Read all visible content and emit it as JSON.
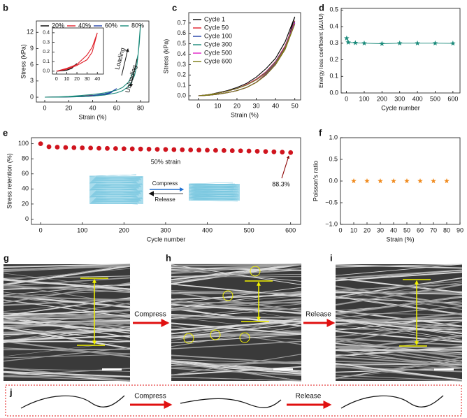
{
  "chart_data": [
    {
      "type": "line",
      "panel": "b",
      "xlabel": "Strain (%)",
      "ylabel": "Stress (kPa)",
      "xlim": [
        -7,
        87
      ],
      "ylim": [
        -0.9,
        14.1
      ],
      "xticks": [
        0,
        20,
        40,
        60,
        80
      ],
      "yticks": [
        0,
        3,
        6,
        9,
        12
      ],
      "legend": "top",
      "annotations": [
        "Loading",
        "Unloading"
      ],
      "series": [
        {
          "name": "20%",
          "color": "#000000",
          "x": [
            0,
            10,
            15,
            20,
            15,
            10,
            0
          ],
          "values": [
            0,
            0.02,
            0.04,
            0.08,
            0.03,
            0.01,
            0
          ]
        },
        {
          "name": "40%",
          "color": "#e0202a",
          "x": [
            0,
            10,
            20,
            30,
            35,
            40,
            35,
            30,
            20,
            10,
            0
          ],
          "values": [
            0,
            0.03,
            0.07,
            0.17,
            0.25,
            0.4,
            0.2,
            0.12,
            0.06,
            0.02,
            0
          ]
        },
        {
          "name": "60%",
          "color": "#1f3ea8",
          "x": [
            0,
            10,
            20,
            30,
            40,
            50,
            55,
            60,
            57,
            55,
            50,
            40,
            30,
            20,
            10,
            0
          ],
          "values": [
            0,
            0.03,
            0.08,
            0.15,
            0.3,
            0.6,
            0.9,
            1.6,
            1.1,
            0.8,
            0.45,
            0.2,
            0.1,
            0.04,
            0.01,
            0
          ]
        },
        {
          "name": "80%",
          "color": "#1a8a7a",
          "x": [
            0,
            10,
            20,
            30,
            40,
            50,
            60,
            65,
            70,
            75,
            78,
            80,
            79,
            77,
            75,
            72,
            70,
            65,
            60,
            50,
            40,
            30,
            20,
            10,
            0
          ],
          "values": [
            0,
            0.05,
            0.15,
            0.3,
            0.5,
            0.8,
            1.3,
            1.8,
            2.8,
            5,
            8,
            13.5,
            10,
            6,
            4,
            2.6,
            2,
            1.2,
            0.8,
            0.4,
            0.2,
            0.1,
            0.05,
            0.02,
            0
          ]
        }
      ]
    },
    {
      "type": "line",
      "xlim": [
        -4,
        46
      ],
      "ylim": [
        -0.03,
        0.45
      ],
      "xticks": [
        0,
        10,
        20,
        30,
        40
      ],
      "yticks": [
        {
          "value": 0,
          "label": "0.0"
        },
        0.1,
        0.2,
        0.3,
        0.4
      ],
      "series": [
        {
          "color": "#000000",
          "x": [
            0,
            10,
            15,
            20,
            15,
            10,
            0
          ],
          "values": [
            0,
            0.02,
            0.04,
            0.08,
            0.03,
            0.01,
            0
          ]
        },
        {
          "color": "#e0202a",
          "x": [
            0,
            10,
            20,
            30,
            35,
            40,
            35,
            30,
            20,
            10,
            0
          ],
          "values": [
            0,
            0.03,
            0.07,
            0.17,
            0.25,
            0.4,
            0.2,
            0.12,
            0.06,
            0.02,
            0
          ]
        }
      ]
    },
    {
      "type": "line",
      "panel": "c",
      "xlabel": "Strain (%)",
      "ylabel": "Stress (kPa)",
      "xlim": [
        -5,
        53
      ],
      "ylim": [
        -0.04,
        0.8
      ],
      "xticks": [
        0,
        10,
        20,
        30,
        40,
        50
      ],
      "yticks": [
        {
          "value": 0,
          "label": "0.0"
        },
        0.1,
        0.2,
        0.3,
        0.4,
        0.5,
        0.6,
        0.7
      ],
      "legend": "upper left",
      "x": [
        0,
        5,
        10,
        15,
        20,
        25,
        30,
        35,
        40,
        45,
        50,
        45,
        40,
        35,
        30,
        25,
        20,
        15,
        10,
        5,
        0
      ],
      "series": [
        {
          "name": "Cycle 1",
          "color": "#000000",
          "values": [
            0,
            0.01,
            0.03,
            0.05,
            0.08,
            0.12,
            0.18,
            0.26,
            0.36,
            0.52,
            0.76,
            0.45,
            0.3,
            0.2,
            0.13,
            0.08,
            0.05,
            0.03,
            0.015,
            0.005,
            0
          ]
        },
        {
          "name": "Cycle 50",
          "color": "#e0202a",
          "values": [
            0,
            0.01,
            0.025,
            0.045,
            0.07,
            0.11,
            0.16,
            0.23,
            0.33,
            0.48,
            0.72,
            0.46,
            0.31,
            0.21,
            0.13,
            0.08,
            0.05,
            0.03,
            0.015,
            0.005,
            0
          ]
        },
        {
          "name": "Cycle 100",
          "color": "#1f3ea8",
          "values": [
            0,
            0.01,
            0.025,
            0.045,
            0.07,
            0.105,
            0.155,
            0.225,
            0.325,
            0.47,
            0.71,
            0.455,
            0.305,
            0.205,
            0.13,
            0.08,
            0.05,
            0.03,
            0.015,
            0.005,
            0
          ]
        },
        {
          "name": "Cycle 300",
          "color": "#1a8a7a",
          "values": [
            0,
            0.01,
            0.025,
            0.045,
            0.07,
            0.105,
            0.155,
            0.22,
            0.32,
            0.465,
            0.7,
            0.45,
            0.3,
            0.2,
            0.13,
            0.08,
            0.05,
            0.03,
            0.015,
            0.005,
            0
          ]
        },
        {
          "name": "Cycle 500",
          "color": "#e020c8",
          "values": [
            0,
            0.01,
            0.025,
            0.045,
            0.07,
            0.105,
            0.155,
            0.22,
            0.318,
            0.463,
            0.7,
            0.45,
            0.3,
            0.2,
            0.13,
            0.08,
            0.05,
            0.03,
            0.015,
            0.005,
            0
          ]
        },
        {
          "name": "Cycle 600",
          "color": "#7a7a10",
          "values": [
            0,
            0.01,
            0.025,
            0.045,
            0.07,
            0.104,
            0.153,
            0.218,
            0.315,
            0.46,
            0.69,
            0.445,
            0.298,
            0.198,
            0.128,
            0.08,
            0.05,
            0.03,
            0.015,
            0.005,
            0
          ]
        }
      ]
    },
    {
      "type": "line",
      "panel": "d",
      "xlabel": "Cycle number",
      "ylabel": "Energy loss coefficient (ΔU/U)",
      "xlim": [
        -30,
        640
      ],
      "ylim": [
        0,
        0.51
      ],
      "xticks": [
        0,
        100,
        200,
        300,
        400,
        500,
        600
      ],
      "yticks": [
        {
          "value": 0,
          "label": "0.0"
        },
        0.1,
        0.2,
        0.3,
        0.4,
        0.5
      ],
      "marker": "star",
      "color": "#1a8a7a",
      "x": [
        1,
        10,
        50,
        100,
        200,
        300,
        400,
        500,
        600
      ],
      "values": [
        0.33,
        0.305,
        0.302,
        0.3,
        0.297,
        0.3,
        0.3,
        0.3,
        0.299
      ]
    },
    {
      "type": "scatter",
      "panel": "e",
      "xlabel": "Cycle number",
      "ylabel": "Stress retention (%)",
      "xlim": [
        -22,
        624
      ],
      "ylim": [
        -7,
        108
      ],
      "xticks": [
        0,
        100,
        200,
        300,
        400,
        500,
        600
      ],
      "yticks": [
        0,
        20,
        40,
        60,
        80,
        100
      ],
      "marker": "circle",
      "color": "#d0141e",
      "annotations": [
        "50% strain",
        "88.3%",
        "Compress",
        "Release"
      ],
      "x": [
        0,
        20,
        40,
        60,
        80,
        100,
        120,
        140,
        160,
        180,
        200,
        220,
        240,
        260,
        280,
        300,
        320,
        340,
        360,
        380,
        400,
        420,
        440,
        460,
        480,
        500,
        520,
        540,
        560,
        580,
        600
      ],
      "values": [
        100,
        96,
        95.5,
        95,
        94.8,
        94.5,
        94.3,
        94,
        93.8,
        93.6,
        93.4,
        93.2,
        93,
        92.8,
        92.6,
        92.4,
        92.2,
        92,
        91.8,
        91.6,
        91.4,
        91.2,
        91,
        90.8,
        90.6,
        90.3,
        90,
        89.7,
        89.3,
        88.9,
        88.3
      ]
    },
    {
      "type": "scatter",
      "panel": "f",
      "xlabel": "Strain (%)",
      "ylabel": "Poisson's ratio",
      "xlim": [
        0,
        90
      ],
      "ylim": [
        -1,
        1
      ],
      "xticks": [
        0,
        10,
        20,
        30,
        40,
        50,
        60,
        70,
        80,
        90
      ],
      "yticks": [
        {
          "value": -1,
          "label": "−1.0"
        },
        {
          "value": -0.5,
          "label": "−0.5"
        },
        {
          "value": 0,
          "label": "0.0"
        },
        0.5,
        {
          "value": 1,
          "label": "1.0"
        }
      ],
      "marker": "star",
      "color": "#f08a1c",
      "x": [
        10,
        20,
        30,
        40,
        50,
        60,
        70,
        80
      ],
      "values": [
        0,
        0,
        0,
        0,
        0,
        0,
        0,
        0
      ]
    }
  ],
  "figure": {
    "panels": [
      "g",
      "h",
      "i",
      "j"
    ],
    "arrow_labels": [
      "Compress",
      "Release"
    ],
    "schematic_labels": [
      "Compress",
      "Release"
    ]
  }
}
